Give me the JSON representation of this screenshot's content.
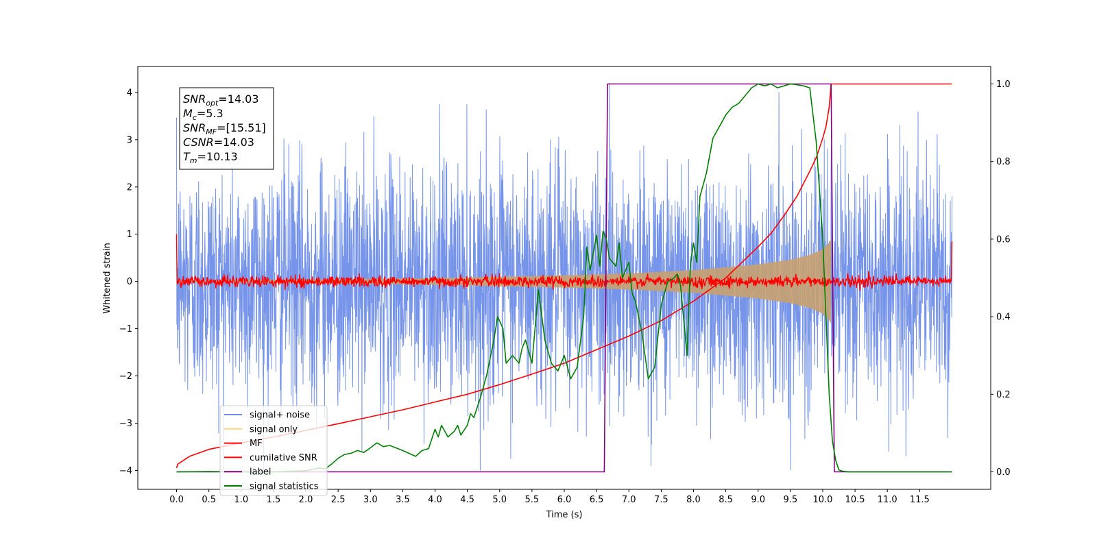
{
  "chart_data": {
    "type": "line",
    "xlabel": "Time (s)",
    "ylabel": "Whitened strain",
    "xlim": [
      -0.6,
      12.6
    ],
    "ylim_left": [
      -4.4,
      4.55
    ],
    "ylim_right": [
      -0.045,
      1.045
    ],
    "x_ticks": [
      "0.0",
      "0.5",
      "1.0",
      "1.5",
      "2.0",
      "2.5",
      "3.0",
      "3.5",
      "4.0",
      "4.5",
      "5.0",
      "5.5",
      "6.0",
      "6.5",
      "7.0",
      "7.5",
      "8.0",
      "8.5",
      "9.0",
      "9.5",
      "10.0",
      "10.5",
      "11.0",
      "11.5"
    ],
    "y_left_ticks": [
      "−4",
      "−3",
      "−2",
      "−1",
      "0",
      "1",
      "2",
      "3",
      "4"
    ],
    "y_right_ticks": [
      "0.0",
      "0.2",
      "0.4",
      "0.6",
      "0.8",
      "1.0"
    ],
    "stats": {
      "snr_opt": {
        "label": "SNR",
        "sub": "opt",
        "value": "=14.03"
      },
      "mc": {
        "label": "M",
        "sub": "c",
        "value": "=5.3"
      },
      "snr_mf": {
        "label": "SNR",
        "sub": "MF",
        "value": "=[15.51]"
      },
      "csnr": {
        "label": "CSNR",
        "value": "=14.03"
      },
      "tm": {
        "label": "T",
        "sub": "m",
        "value": "=10.13"
      }
    },
    "legend": {
      "position": "lower-left",
      "entries": [
        {
          "label": "signal+ noise",
          "color": "#6f8ee8"
        },
        {
          "label": "signal only",
          "color": "#ffd280"
        },
        {
          "label": "MF",
          "color": "#ff0000"
        },
        {
          "label": "cumilative SNR",
          "color": "#ff0000"
        },
        {
          "label": "label",
          "color": "#800080"
        },
        {
          "label": "signal statistics",
          "color": "#008000"
        }
      ]
    },
    "series": [
      {
        "name": "signal+ noise",
        "axis": "left",
        "color": "#6f8ee8",
        "t_start": 0.0,
        "t_end": 12.0,
        "amplitude_envelope": [
          -4.0,
          4.2
        ],
        "kind": "noise"
      },
      {
        "name": "signal only",
        "axis": "left",
        "color": "#ffd280",
        "envelope_points": [
          [
            0.0,
            0.02
          ],
          [
            2.0,
            0.04
          ],
          [
            4.0,
            0.07
          ],
          [
            6.0,
            0.13
          ],
          [
            7.0,
            0.17
          ],
          [
            8.0,
            0.24
          ],
          [
            9.0,
            0.36
          ],
          [
            9.5,
            0.46
          ],
          [
            9.8,
            0.56
          ],
          [
            10.0,
            0.68
          ],
          [
            10.1,
            0.82
          ],
          [
            10.13,
            0.9
          ]
        ],
        "t_end": 10.13
      },
      {
        "name": "MF",
        "axis": "left",
        "color": "#ff0000",
        "kind": "noise_small",
        "t_start": 0.0,
        "t_end": 12.0,
        "edge_values": [
          1.0,
          0.85
        ]
      },
      {
        "name": "cumilative SNR",
        "axis": "right",
        "color": "#ff0000",
        "x": [
          0.0,
          0.02,
          0.2,
          0.5,
          1.0,
          1.5,
          2.0,
          2.5,
          3.0,
          3.5,
          4.0,
          4.5,
          5.0,
          5.5,
          6.0,
          6.5,
          7.0,
          7.5,
          8.0,
          8.5,
          9.0,
          9.2,
          9.4,
          9.6,
          9.8,
          9.9,
          10.0,
          10.05,
          10.1,
          10.13,
          10.5,
          11.0,
          11.5,
          12.0
        ],
        "y": [
          0.01,
          0.02,
          0.04,
          0.058,
          0.075,
          0.09,
          0.107,
          0.124,
          0.142,
          0.16,
          0.18,
          0.2,
          0.225,
          0.252,
          0.28,
          0.315,
          0.35,
          0.39,
          0.44,
          0.5,
          0.58,
          0.615,
          0.66,
          0.71,
          0.775,
          0.81,
          0.86,
          0.89,
          0.94,
          1.0,
          1.0,
          1.0,
          1.0,
          1.0
        ]
      },
      {
        "name": "label",
        "axis": "right",
        "color": "#800080",
        "x": [
          0.0,
          6.62,
          6.67,
          10.13,
          10.18,
          12.0
        ],
        "y": [
          0.0,
          0.0,
          1.0,
          1.0,
          0.0,
          0.0
        ]
      },
      {
        "name": "signal statistics",
        "axis": "right",
        "color": "#008000",
        "x": [
          0.0,
          0.5,
          1.0,
          1.5,
          2.0,
          2.2,
          2.3,
          2.4,
          2.5,
          2.6,
          2.7,
          2.8,
          2.9,
          3.0,
          3.1,
          3.2,
          3.3,
          3.5,
          3.7,
          3.8,
          3.9,
          4.0,
          4.05,
          4.1,
          4.2,
          4.3,
          4.35,
          4.4,
          4.5,
          4.55,
          4.6,
          4.7,
          4.8,
          4.9,
          4.97,
          5.05,
          5.1,
          5.2,
          5.3,
          5.35,
          5.4,
          5.5,
          5.6,
          5.7,
          5.8,
          5.9,
          6.0,
          6.1,
          6.2,
          6.3,
          6.35,
          6.4,
          6.5,
          6.55,
          6.6,
          6.65,
          6.7,
          6.8,
          6.85,
          6.9,
          7.0,
          7.05,
          7.1,
          7.2,
          7.3,
          7.4,
          7.5,
          7.6,
          7.7,
          7.75,
          7.8,
          7.9,
          7.95,
          8.0,
          8.05,
          8.1,
          8.2,
          8.3,
          8.4,
          8.5,
          8.6,
          8.7,
          8.8,
          8.9,
          9.0,
          9.1,
          9.2,
          9.3,
          9.4,
          9.5,
          9.6,
          9.7,
          9.8,
          9.9,
          10.0,
          10.05,
          10.1,
          10.15,
          10.2,
          10.25,
          10.3,
          10.4,
          10.5,
          11.0,
          11.5,
          12.0
        ],
        "y": [
          0.0,
          0.001,
          0.0,
          0.0,
          0.003,
          0.01,
          0.008,
          0.02,
          0.035,
          0.045,
          0.048,
          0.055,
          0.05,
          0.062,
          0.075,
          0.065,
          0.068,
          0.055,
          0.04,
          0.055,
          0.06,
          0.11,
          0.09,
          0.12,
          0.09,
          0.105,
          0.12,
          0.095,
          0.12,
          0.15,
          0.14,
          0.19,
          0.25,
          0.33,
          0.4,
          0.37,
          0.28,
          0.3,
          0.28,
          0.32,
          0.34,
          0.28,
          0.47,
          0.34,
          0.28,
          0.26,
          0.3,
          0.24,
          0.27,
          0.4,
          0.58,
          0.52,
          0.61,
          0.53,
          0.62,
          0.6,
          0.55,
          0.53,
          0.59,
          0.5,
          0.54,
          0.46,
          0.44,
          0.36,
          0.24,
          0.27,
          0.43,
          0.49,
          0.5,
          0.51,
          0.48,
          0.3,
          0.53,
          0.59,
          0.54,
          0.71,
          0.77,
          0.86,
          0.89,
          0.92,
          0.94,
          0.95,
          0.97,
          0.99,
          1.0,
          0.995,
          1.0,
          0.99,
          0.995,
          1.0,
          0.998,
          0.995,
          0.99,
          0.85,
          0.6,
          0.4,
          0.2,
          0.08,
          0.03,
          0.005,
          0.002,
          0.0,
          0.0,
          0.0,
          0.0,
          0.0
        ]
      }
    ]
  }
}
